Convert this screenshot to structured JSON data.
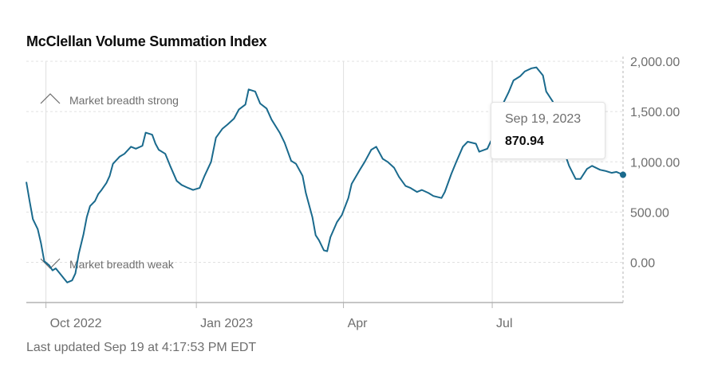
{
  "title": "McClellan Volume Summation Index",
  "footer": "Last updated Sep 19 at 4:17:53 PM EDT",
  "annotations": {
    "strong": "Market breadth strong",
    "weak": "Market breadth weak"
  },
  "tooltip": {
    "date": "Sep 19, 2023",
    "value": "870.94"
  },
  "colors": {
    "line": "#1a6a8d",
    "grid": "#e0e0e0",
    "axis": "#b5b5b5"
  },
  "chart_data": {
    "type": "line",
    "title": "McClellan Volume Summation Index",
    "x_ticks": [
      "Oct 2022",
      "Jan 2023",
      "Apr",
      "Jul"
    ],
    "y_ticks": [
      "2,000.00",
      "1,500.00",
      "1,000.00",
      "500.00",
      "0.00"
    ],
    "ylim": [
      -400,
      2000
    ],
    "xlim": [
      "2022-09-19",
      "2023-09-19"
    ],
    "grid": true,
    "series": [
      {
        "values": [
          {
            "x": "2022-09-19",
            "y": 800
          },
          {
            "x": "2022-09-21",
            "y": 610
          },
          {
            "x": "2022-09-23",
            "y": 430
          },
          {
            "x": "2022-09-26",
            "y": 330
          },
          {
            "x": "2022-09-28",
            "y": 190
          },
          {
            "x": "2022-09-30",
            "y": 10
          },
          {
            "x": "2022-10-03",
            "y": -30
          },
          {
            "x": "2022-10-05",
            "y": -80
          },
          {
            "x": "2022-10-07",
            "y": -60
          },
          {
            "x": "2022-10-10",
            "y": -120
          },
          {
            "x": "2022-10-12",
            "y": -160
          },
          {
            "x": "2022-10-14",
            "y": -200
          },
          {
            "x": "2022-10-17",
            "y": -180
          },
          {
            "x": "2022-10-19",
            "y": -110
          },
          {
            "x": "2022-10-21",
            "y": 80
          },
          {
            "x": "2022-10-24",
            "y": 280
          },
          {
            "x": "2022-10-26",
            "y": 450
          },
          {
            "x": "2022-10-28",
            "y": 560
          },
          {
            "x": "2022-10-31",
            "y": 610
          },
          {
            "x": "2022-11-02",
            "y": 680
          },
          {
            "x": "2022-11-04",
            "y": 720
          },
          {
            "x": "2022-11-07",
            "y": 790
          },
          {
            "x": "2022-11-09",
            "y": 860
          },
          {
            "x": "2022-11-11",
            "y": 980
          },
          {
            "x": "2022-11-15",
            "y": 1050
          },
          {
            "x": "2022-11-18",
            "y": 1080
          },
          {
            "x": "2022-11-22",
            "y": 1150
          },
          {
            "x": "2022-11-25",
            "y": 1130
          },
          {
            "x": "2022-11-29",
            "y": 1160
          },
          {
            "x": "2022-12-01",
            "y": 1290
          },
          {
            "x": "2022-12-05",
            "y": 1270
          },
          {
            "x": "2022-12-07",
            "y": 1180
          },
          {
            "x": "2022-12-09",
            "y": 1120
          },
          {
            "x": "2022-12-13",
            "y": 1080
          },
          {
            "x": "2022-12-16",
            "y": 960
          },
          {
            "x": "2022-12-20",
            "y": 810
          },
          {
            "x": "2022-12-23",
            "y": 770
          },
          {
            "x": "2022-12-27",
            "y": 740
          },
          {
            "x": "2022-12-30",
            "y": 720
          },
          {
            "x": "2023-01-03",
            "y": 740
          },
          {
            "x": "2023-01-06",
            "y": 860
          },
          {
            "x": "2023-01-10",
            "y": 1000
          },
          {
            "x": "2023-01-13",
            "y": 1240
          },
          {
            "x": "2023-01-17",
            "y": 1330
          },
          {
            "x": "2023-01-20",
            "y": 1370
          },
          {
            "x": "2023-01-24",
            "y": 1430
          },
          {
            "x": "2023-01-27",
            "y": 1520
          },
          {
            "x": "2023-01-31",
            "y": 1570
          },
          {
            "x": "2023-02-02",
            "y": 1720
          },
          {
            "x": "2023-02-06",
            "y": 1700
          },
          {
            "x": "2023-02-09",
            "y": 1580
          },
          {
            "x": "2023-02-13",
            "y": 1530
          },
          {
            "x": "2023-02-16",
            "y": 1420
          },
          {
            "x": "2023-02-21",
            "y": 1290
          },
          {
            "x": "2023-02-24",
            "y": 1190
          },
          {
            "x": "2023-02-28",
            "y": 1010
          },
          {
            "x": "2023-03-03",
            "y": 980
          },
          {
            "x": "2023-03-07",
            "y": 860
          },
          {
            "x": "2023-03-09",
            "y": 690
          },
          {
            "x": "2023-03-13",
            "y": 450
          },
          {
            "x": "2023-03-15",
            "y": 270
          },
          {
            "x": "2023-03-17",
            "y": 220
          },
          {
            "x": "2023-03-20",
            "y": 120
          },
          {
            "x": "2023-03-22",
            "y": 110
          },
          {
            "x": "2023-03-24",
            "y": 250
          },
          {
            "x": "2023-03-28",
            "y": 400
          },
          {
            "x": "2023-03-31",
            "y": 470
          },
          {
            "x": "2023-04-04",
            "y": 640
          },
          {
            "x": "2023-04-06",
            "y": 780
          },
          {
            "x": "2023-04-11",
            "y": 920
          },
          {
            "x": "2023-04-14",
            "y": 1000
          },
          {
            "x": "2023-04-18",
            "y": 1120
          },
          {
            "x": "2023-04-21",
            "y": 1150
          },
          {
            "x": "2023-04-25",
            "y": 1030
          },
          {
            "x": "2023-04-28",
            "y": 1000
          },
          {
            "x": "2023-05-02",
            "y": 940
          },
          {
            "x": "2023-05-05",
            "y": 850
          },
          {
            "x": "2023-05-09",
            "y": 760
          },
          {
            "x": "2023-05-12",
            "y": 740
          },
          {
            "x": "2023-05-16",
            "y": 700
          },
          {
            "x": "2023-05-19",
            "y": 720
          },
          {
            "x": "2023-05-23",
            "y": 690
          },
          {
            "x": "2023-05-26",
            "y": 660
          },
          {
            "x": "2023-05-31",
            "y": 640
          },
          {
            "x": "2023-06-02",
            "y": 700
          },
          {
            "x": "2023-06-06",
            "y": 880
          },
          {
            "x": "2023-06-09",
            "y": 1000
          },
          {
            "x": "2023-06-13",
            "y": 1150
          },
          {
            "x": "2023-06-16",
            "y": 1200
          },
          {
            "x": "2023-06-21",
            "y": 1180
          },
          {
            "x": "2023-06-23",
            "y": 1100
          },
          {
            "x": "2023-06-28",
            "y": 1130
          },
          {
            "x": "2023-06-30",
            "y": 1200
          },
          {
            "x": "2023-07-05",
            "y": 1330
          },
          {
            "x": "2023-07-07",
            "y": 1560
          },
          {
            "x": "2023-07-11",
            "y": 1690
          },
          {
            "x": "2023-07-14",
            "y": 1810
          },
          {
            "x": "2023-07-18",
            "y": 1850
          },
          {
            "x": "2023-07-21",
            "y": 1900
          },
          {
            "x": "2023-07-25",
            "y": 1930
          },
          {
            "x": "2023-07-28",
            "y": 1940
          },
          {
            "x": "2023-08-01",
            "y": 1860
          },
          {
            "x": "2023-08-03",
            "y": 1700
          },
          {
            "x": "2023-08-07",
            "y": 1600
          },
          {
            "x": "2023-08-10",
            "y": 1350
          },
          {
            "x": "2023-08-14",
            "y": 1100
          },
          {
            "x": "2023-08-17",
            "y": 960
          },
          {
            "x": "2023-08-21",
            "y": 830
          },
          {
            "x": "2023-08-24",
            "y": 830
          },
          {
            "x": "2023-08-28",
            "y": 930
          },
          {
            "x": "2023-08-31",
            "y": 960
          },
          {
            "x": "2023-09-05",
            "y": 920
          },
          {
            "x": "2023-09-08",
            "y": 910
          },
          {
            "x": "2023-09-12",
            "y": 890
          },
          {
            "x": "2023-09-15",
            "y": 900
          },
          {
            "x": "2023-09-19",
            "y": 870.94
          }
        ]
      }
    ]
  }
}
